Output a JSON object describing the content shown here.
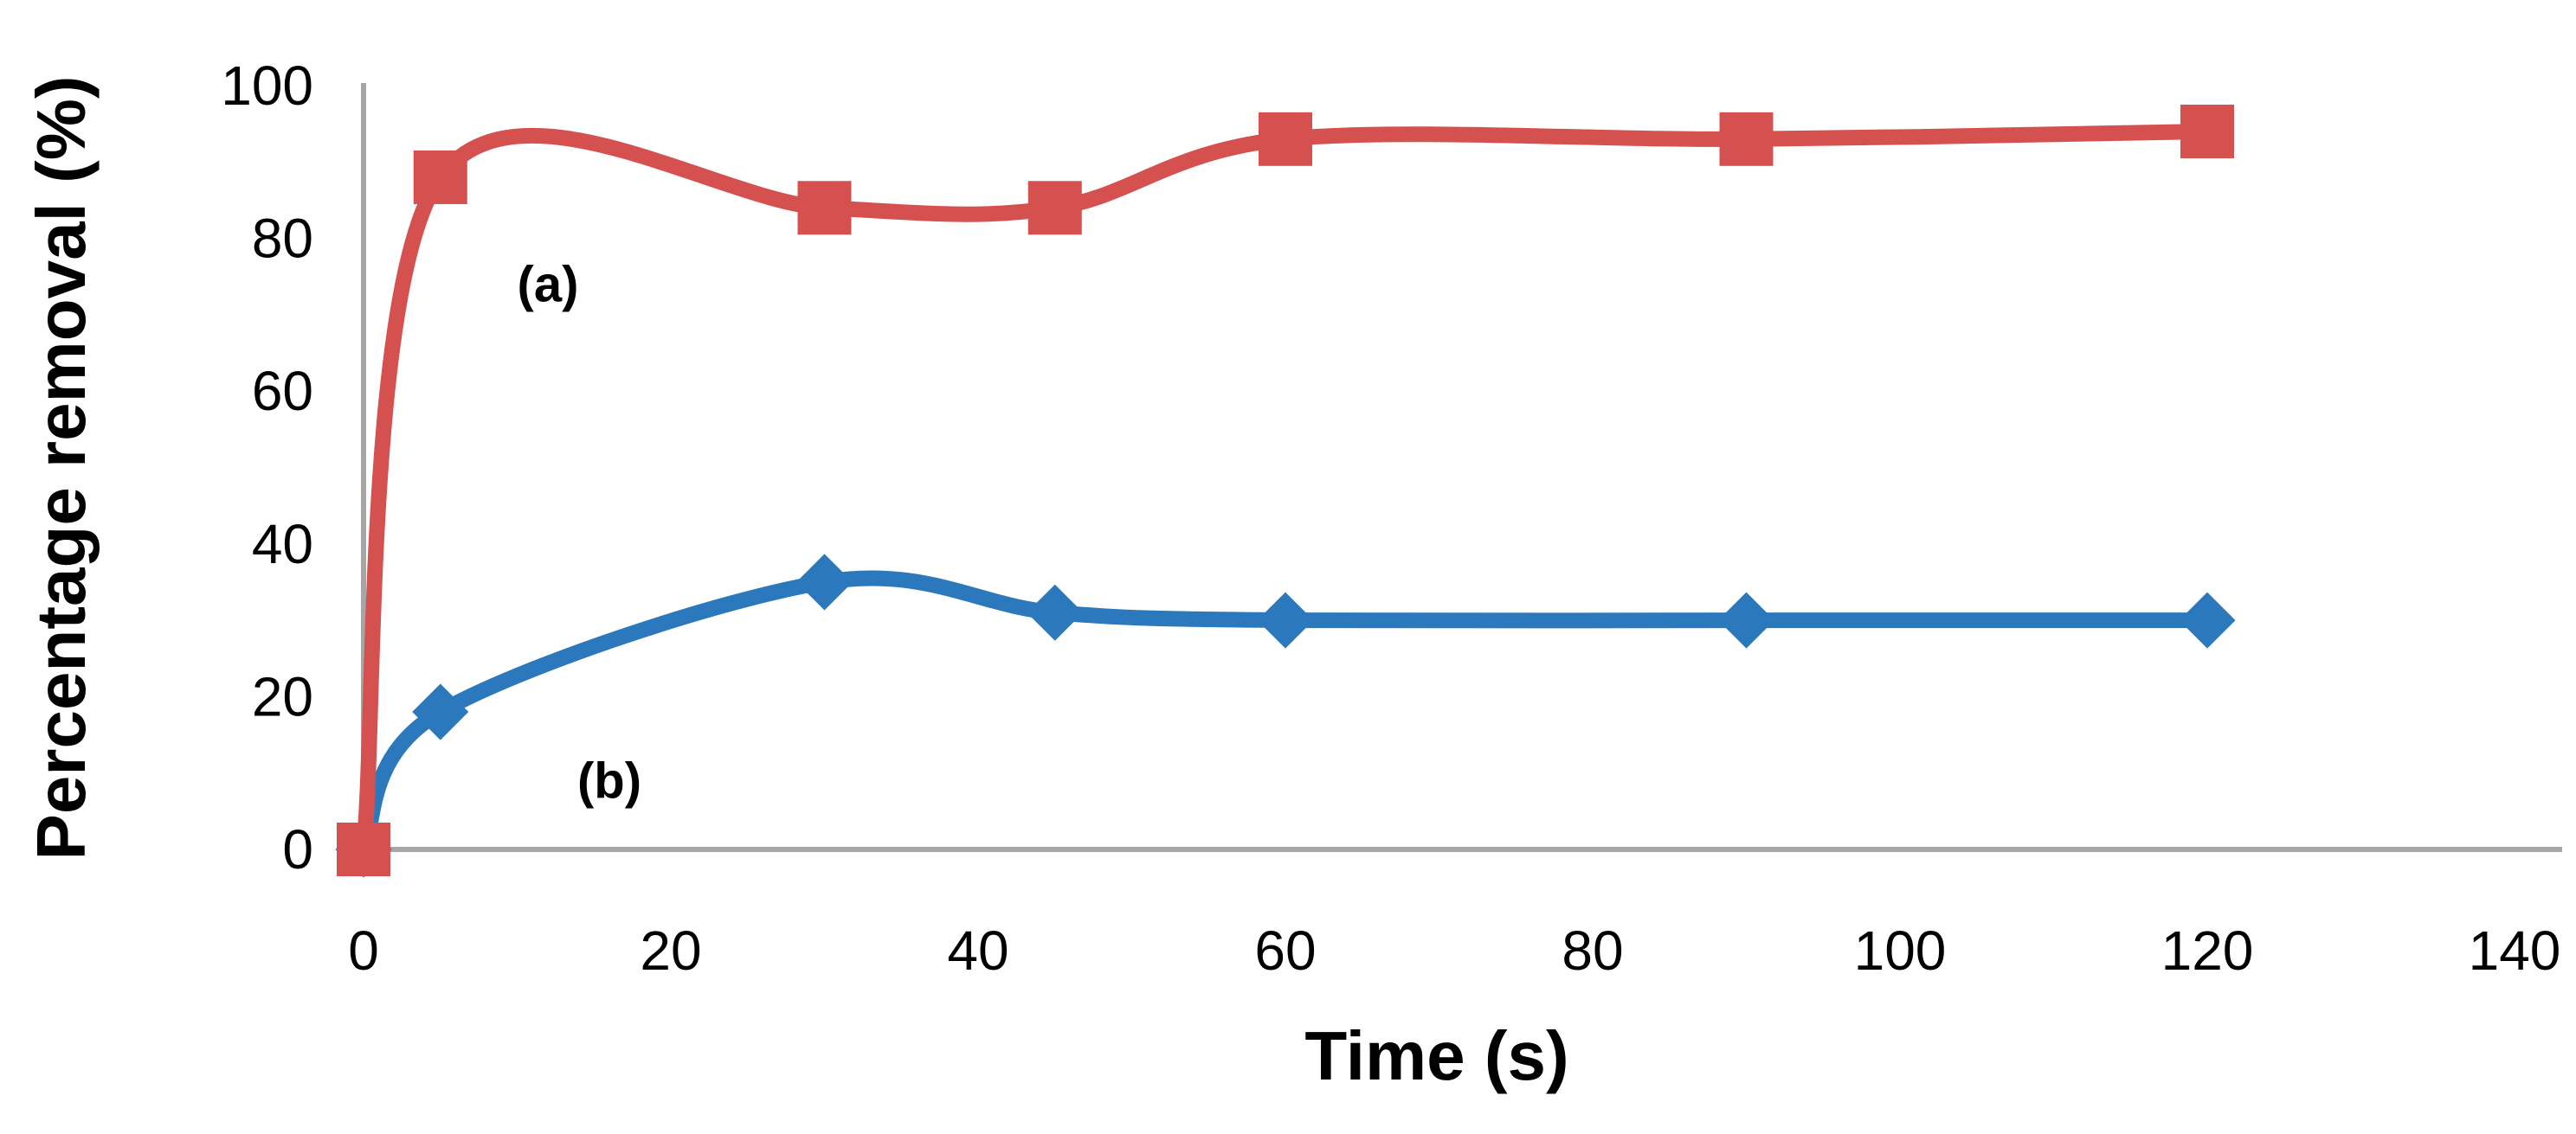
{
  "chart_data": {
    "type": "line",
    "title": "",
    "xlabel": "Time (s)",
    "ylabel": "Percentage removal (%)",
    "x": [
      0,
      5,
      30,
      45,
      60,
      90,
      120
    ],
    "series": [
      {
        "name": "(a)",
        "marker": "square",
        "color": "#D45150",
        "values": [
          0,
          88,
          84,
          84,
          93,
          93,
          94
        ]
      },
      {
        "name": "(b)",
        "marker": "diamond",
        "color": "#2B78BC",
        "values": [
          0,
          18,
          35,
          31,
          30,
          30,
          30
        ]
      }
    ],
    "xlim": [
      0,
      140
    ],
    "ylim": [
      0,
      100
    ],
    "xticks": [
      0,
      20,
      40,
      60,
      80,
      100,
      120,
      140
    ],
    "yticks": [
      0,
      20,
      40,
      60,
      80,
      100
    ],
    "grid": false,
    "legend_position": "none",
    "line_style": "smoothed",
    "line_width": 18,
    "axis_color": "#A6A6A6",
    "text_color": "#000000",
    "background": "#FFFFFF",
    "annotations": [
      {
        "text": "(a)",
        "x": 12,
        "y": 74
      },
      {
        "text": "(b)",
        "x": 16,
        "y": 9
      }
    ]
  }
}
